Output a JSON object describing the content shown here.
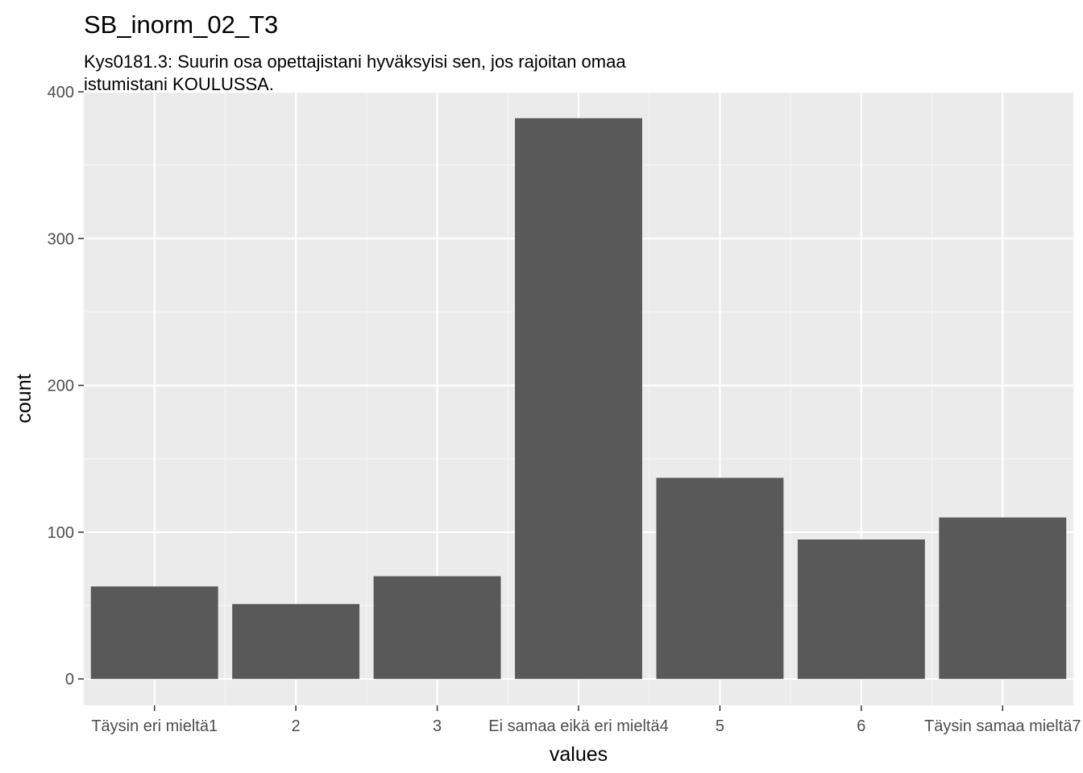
{
  "chart_data": {
    "type": "bar",
    "title": "SB_inorm_02_T3",
    "subtitle_lines": [
      "Kys0181.3: Suurin osa opettajistani hyväksyisi sen, jos rajoitan omaa",
      "istumistani KOULUSSA."
    ],
    "xlabel": "values",
    "ylabel": "count",
    "categories": [
      "Täysin eri mieltä1",
      "2",
      "3",
      "Ei samaa eikä eri mieltä4",
      "5",
      "6",
      "Täysin samaa mieltä7"
    ],
    "values": [
      63,
      51,
      70,
      382,
      137,
      95,
      110
    ],
    "ylim": [
      -18,
      400
    ],
    "yticks": [
      0,
      100,
      200,
      300,
      400
    ],
    "grid": true,
    "legend": "none",
    "colors": {
      "bar": "#595959",
      "panel": "#ebebeb",
      "grid_major": "#ffffff",
      "grid_minor": "#f5f5f5",
      "tick_label": "#4d4d4d",
      "tick_mark": "#333333"
    }
  }
}
